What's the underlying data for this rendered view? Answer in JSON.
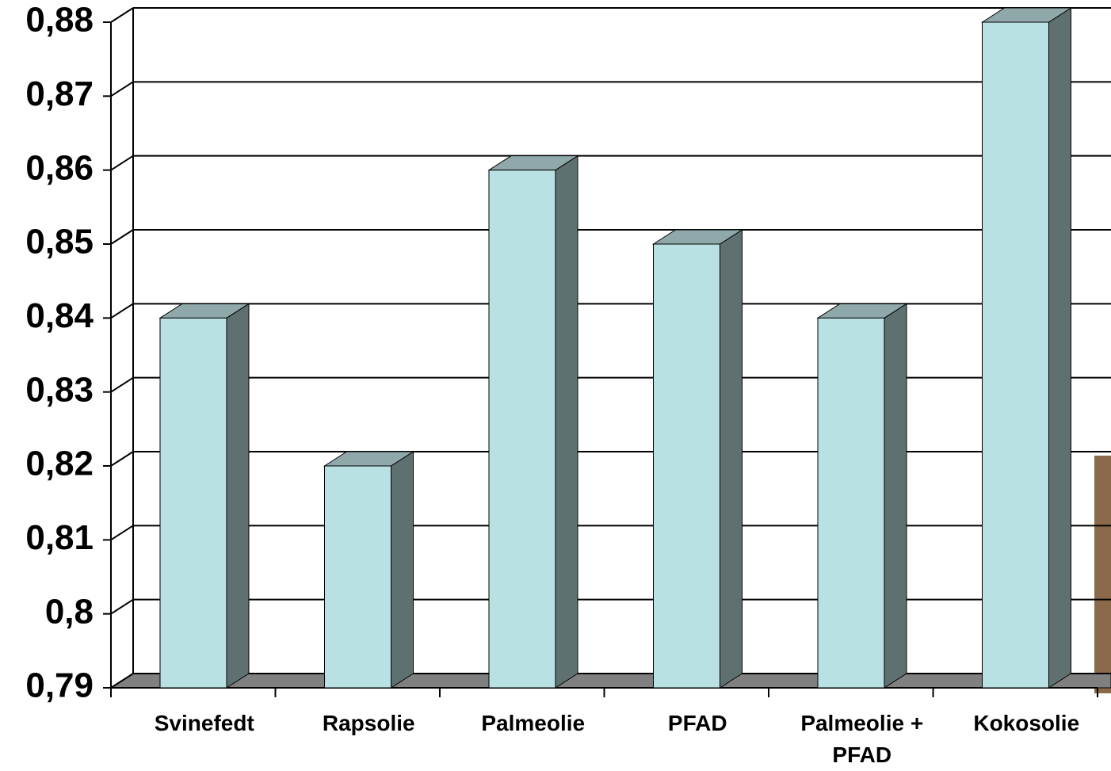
{
  "chart_data": {
    "type": "bar3d",
    "categories": [
      "Svinefedt",
      "Rapsolie",
      "Palmeolie",
      "PFAD",
      "Palmeolie + PFAD",
      "Kokosolie"
    ],
    "values": [
      0.84,
      0.82,
      0.86,
      0.85,
      0.84,
      0.88
    ],
    "color": "#b9e0e2",
    "ylim": [
      0.79,
      0.88
    ],
    "yticks": [
      {
        "value": 0.79,
        "label": "0,79"
      },
      {
        "value": 0.8,
        "label": "0,8"
      },
      {
        "value": 0.81,
        "label": "0,81"
      },
      {
        "value": 0.82,
        "label": "0,82"
      },
      {
        "value": 0.83,
        "label": "0,83"
      },
      {
        "value": 0.84,
        "label": "0,84"
      },
      {
        "value": 0.85,
        "label": "0,85"
      },
      {
        "value": 0.86,
        "label": "0,86"
      },
      {
        "value": 0.87,
        "label": "0,87"
      },
      {
        "value": 0.88,
        "label": "0,88"
      }
    ],
    "grid": true
  }
}
